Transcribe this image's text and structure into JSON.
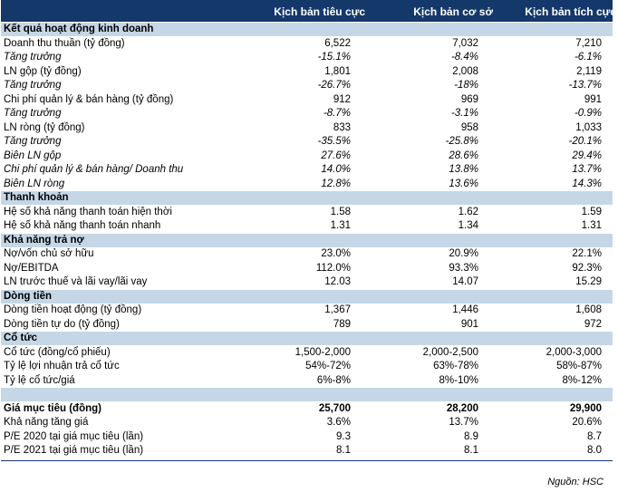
{
  "header": {
    "col1": "Kịch bản tiêu cực",
    "col2": "Kịch bản cơ sở",
    "col3": "Kịch bản tích cực"
  },
  "rows": [
    {
      "type": "sec",
      "label": "Kết quả hoạt động kinh doanh"
    },
    {
      "type": "row",
      "label": "Doanh thu thuần (tỷ đồng)",
      "v": [
        "6,522",
        "7,032",
        "7,210"
      ]
    },
    {
      "type": "it",
      "label": "Tăng trưởng",
      "v": [
        "-15.1%",
        "-8.4%",
        "-6.1%"
      ]
    },
    {
      "type": "row",
      "label": "LN gộp (tỷ đồng)",
      "v": [
        "1,801",
        "2,008",
        "2,119"
      ]
    },
    {
      "type": "it",
      "label": "Tăng trưởng",
      "v": [
        "-26.7%",
        "-18%",
        "-13.7%"
      ]
    },
    {
      "type": "row",
      "label": "Chi phí quản lý & bán hàng (tỷ đồng)",
      "v": [
        "912",
        "969",
        "991"
      ]
    },
    {
      "type": "it",
      "label": "Tăng trưởng",
      "v": [
        "-8.7%",
        "-3.1%",
        "-0.9%"
      ]
    },
    {
      "type": "row",
      "label": "LN ròng (tỷ đồng)",
      "v": [
        "833",
        "958",
        "1,033"
      ]
    },
    {
      "type": "it",
      "label": "Tăng trưởng",
      "v": [
        "-35.5%",
        "-25.8%",
        "-20.1%"
      ]
    },
    {
      "type": "it",
      "label": "Biên LN gộp",
      "v": [
        "27.6%",
        "28.6%",
        "29.4%"
      ]
    },
    {
      "type": "it",
      "label": "Chi phí quản lý & bán hàng/ Doanh thu",
      "v": [
        "14.0%",
        "13.8%",
        "13.7%"
      ]
    },
    {
      "type": "it",
      "label": "Biên LN ròng",
      "v": [
        "12.8%",
        "13.6%",
        "14.3%"
      ]
    },
    {
      "type": "sec",
      "label": "Thanh khoản"
    },
    {
      "type": "row",
      "label": "Hệ số khả năng thanh toán hiện thời",
      "v": [
        "1.58",
        "1.62",
        "1.59"
      ]
    },
    {
      "type": "row",
      "label": "Hệ số khả năng thanh toán nhanh",
      "v": [
        "1.31",
        "1.34",
        "1.31"
      ]
    },
    {
      "type": "sec",
      "label": "Khả năng trả nợ"
    },
    {
      "type": "row",
      "label": "Nợ/vốn chủ sở hữu",
      "v": [
        "23.0%",
        "20.9%",
        "22.1%"
      ]
    },
    {
      "type": "row",
      "label": "Nợ/EBITDA",
      "v": [
        "112.0%",
        "93.3%",
        "92.3%"
      ]
    },
    {
      "type": "row",
      "label": "LN trước thuế và lãi vay/lãi vay",
      "v": [
        "12.03",
        "14.07",
        "15.29"
      ]
    },
    {
      "type": "sec",
      "label": "Dòng tiền"
    },
    {
      "type": "row",
      "label": "Dòng tiền hoạt động (tỷ đồng)",
      "v": [
        "1,367",
        "1,446",
        "1,608"
      ]
    },
    {
      "type": "row",
      "label": "Dòng tiền tự do (tỷ đồng)",
      "v": [
        "789",
        "901",
        "972"
      ]
    },
    {
      "type": "sec",
      "label": "Cổ tức"
    },
    {
      "type": "row",
      "label": "Cổ tức (đồng/cổ phiếu)",
      "v": [
        "1,500-2,000",
        "2,000-2,500",
        "2,000-3,000"
      ]
    },
    {
      "type": "row",
      "label": "Tỷ lệ lợi nhuận trả cổ tức",
      "v": [
        "54%-72%",
        "63%-78%",
        "58%-87%"
      ]
    },
    {
      "type": "row",
      "label": "Tỷ lệ cổ tức/giá",
      "v": [
        "6%-8%",
        "8%-10%",
        "8%-12%"
      ]
    },
    {
      "type": "spacer",
      "label": ""
    },
    {
      "type": "bold",
      "label": "Giá mục tiêu (đồng)",
      "v": [
        "25,700",
        "28,200",
        "29,900"
      ]
    },
    {
      "type": "row",
      "label": "Khả năng tăng giá",
      "v": [
        "3.6%",
        "13.7%",
        "20.6%"
      ]
    },
    {
      "type": "row",
      "label": "P/E 2020 tại giá mục tiêu (lần)",
      "v": [
        "9.3",
        "8.9",
        "8.7"
      ]
    },
    {
      "type": "row",
      "label": "P/E 2021 tại giá mục tiêu (lần)",
      "v": [
        "8.1",
        "8.1",
        "8.0"
      ]
    }
  ],
  "source": "Nguồn: HSC"
}
